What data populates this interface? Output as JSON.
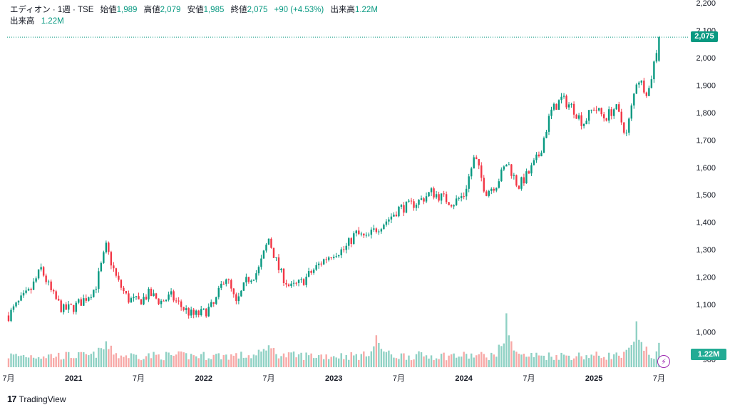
{
  "header": {
    "symbol": "エディオン · 1週 · TSE",
    "open_label": "始値",
    "open": "1,989",
    "high_label": "高値",
    "high": "2,079",
    "low_label": "安値",
    "low": "1,985",
    "close_label": "終値",
    "close": "2,075",
    "change": "+90 (+4.53%)",
    "vol_label": "出来高",
    "vol": "1.22M",
    "vol_row_label": "出来高",
    "vol_row_value": "1.22M"
  },
  "badges": {
    "last_price": "2,075",
    "last_volume": "1.22M"
  },
  "brand": {
    "logo_mark": "17",
    "name": "TradingView"
  },
  "colors": {
    "up": "#089981",
    "down": "#f23645",
    "vol_up": "#8fd1c4",
    "vol_down": "#f7a9a7"
  },
  "chart_data": {
    "type": "candlestick",
    "interval": "1 week",
    "y_axis": {
      "min": 900,
      "max": 2200,
      "ticks": [
        "900",
        "1,000",
        "1,100",
        "1,200",
        "1,300",
        "1,400",
        "1,500",
        "1,600",
        "1,700",
        "1,800",
        "1,900",
        "2,000",
        "2,100",
        "2,200"
      ]
    },
    "x_axis": {
      "ticks": [
        {
          "label": "7月",
          "bold": false,
          "date": "2020-07"
        },
        {
          "label": "2021",
          "bold": true,
          "date": "2021-01"
        },
        {
          "label": "7月",
          "bold": false,
          "date": "2021-07"
        },
        {
          "label": "2022",
          "bold": true,
          "date": "2022-01"
        },
        {
          "label": "7月",
          "bold": false,
          "date": "2022-07"
        },
        {
          "label": "2023",
          "bold": true,
          "date": "2023-01"
        },
        {
          "label": "7月",
          "bold": false,
          "date": "2023-07"
        },
        {
          "label": "2024",
          "bold": true,
          "date": "2024-01"
        },
        {
          "label": "7月",
          "bold": false,
          "date": "2024-07"
        },
        {
          "label": "2025",
          "bold": true,
          "date": "2025-01"
        },
        {
          "label": "7月",
          "bold": false,
          "date": "2025-07"
        }
      ]
    },
    "price_path": [
      [
        "2020-07",
        1060
      ],
      [
        "2020-08",
        1110
      ],
      [
        "2020-09",
        1150
      ],
      [
        "2020-10",
        1230
      ],
      [
        "2020-11",
        1140
      ],
      [
        "2020-12",
        1080
      ],
      [
        "2021-01",
        1090
      ],
      [
        "2021-02",
        1120
      ],
      [
        "2021-03",
        1160
      ],
      [
        "2021-04",
        1310
      ],
      [
        "2021-05",
        1190
      ],
      [
        "2021-06",
        1120
      ],
      [
        "2021-07",
        1110
      ],
      [
        "2021-08",
        1140
      ],
      [
        "2021-09",
        1110
      ],
      [
        "2021-10",
        1130
      ],
      [
        "2021-11",
        1090
      ],
      [
        "2021-12",
        1060
      ],
      [
        "2022-01",
        1070
      ],
      [
        "2022-02",
        1100
      ],
      [
        "2022-03",
        1210
      ],
      [
        "2022-04",
        1100
      ],
      [
        "2022-05",
        1190
      ],
      [
        "2022-06",
        1220
      ],
      [
        "2022-07",
        1340
      ],
      [
        "2022-08",
        1220
      ],
      [
        "2022-09",
        1160
      ],
      [
        "2022-10",
        1180
      ],
      [
        "2022-11",
        1220
      ],
      [
        "2022-12",
        1260
      ],
      [
        "2023-01",
        1290
      ],
      [
        "2023-02",
        1300
      ],
      [
        "2023-03",
        1360
      ],
      [
        "2023-04",
        1340
      ],
      [
        "2023-05",
        1380
      ],
      [
        "2023-06",
        1410
      ],
      [
        "2023-07",
        1450
      ],
      [
        "2023-08",
        1460
      ],
      [
        "2023-09",
        1480
      ],
      [
        "2023-10",
        1510
      ],
      [
        "2023-11",
        1490
      ],
      [
        "2023-12",
        1470
      ],
      [
        "2024-01",
        1500
      ],
      [
        "2024-02",
        1640
      ],
      [
        "2024-03",
        1510
      ],
      [
        "2024-04",
        1540
      ],
      [
        "2024-05",
        1620
      ],
      [
        "2024-06",
        1530
      ],
      [
        "2024-07",
        1580
      ],
      [
        "2024-08",
        1650
      ],
      [
        "2024-09",
        1800
      ],
      [
        "2024-10",
        1850
      ],
      [
        "2024-11",
        1820
      ],
      [
        "2024-12",
        1760
      ],
      [
        "2025-01",
        1820
      ],
      [
        "2025-02",
        1780
      ],
      [
        "2025-03",
        1820
      ],
      [
        "2025-04",
        1720
      ],
      [
        "2025-05",
        1930
      ],
      [
        "2025-06",
        1870
      ],
      [
        "2025-07",
        2075
      ]
    ],
    "volume": {
      "latest": "1.22M",
      "spikes": [
        [
          "2021-04",
          1.3
        ],
        [
          "2022-07",
          1.1
        ],
        [
          "2023-05",
          1.6
        ],
        [
          "2024-05",
          2.7
        ],
        [
          "2025-05",
          2.3
        ]
      ]
    }
  }
}
